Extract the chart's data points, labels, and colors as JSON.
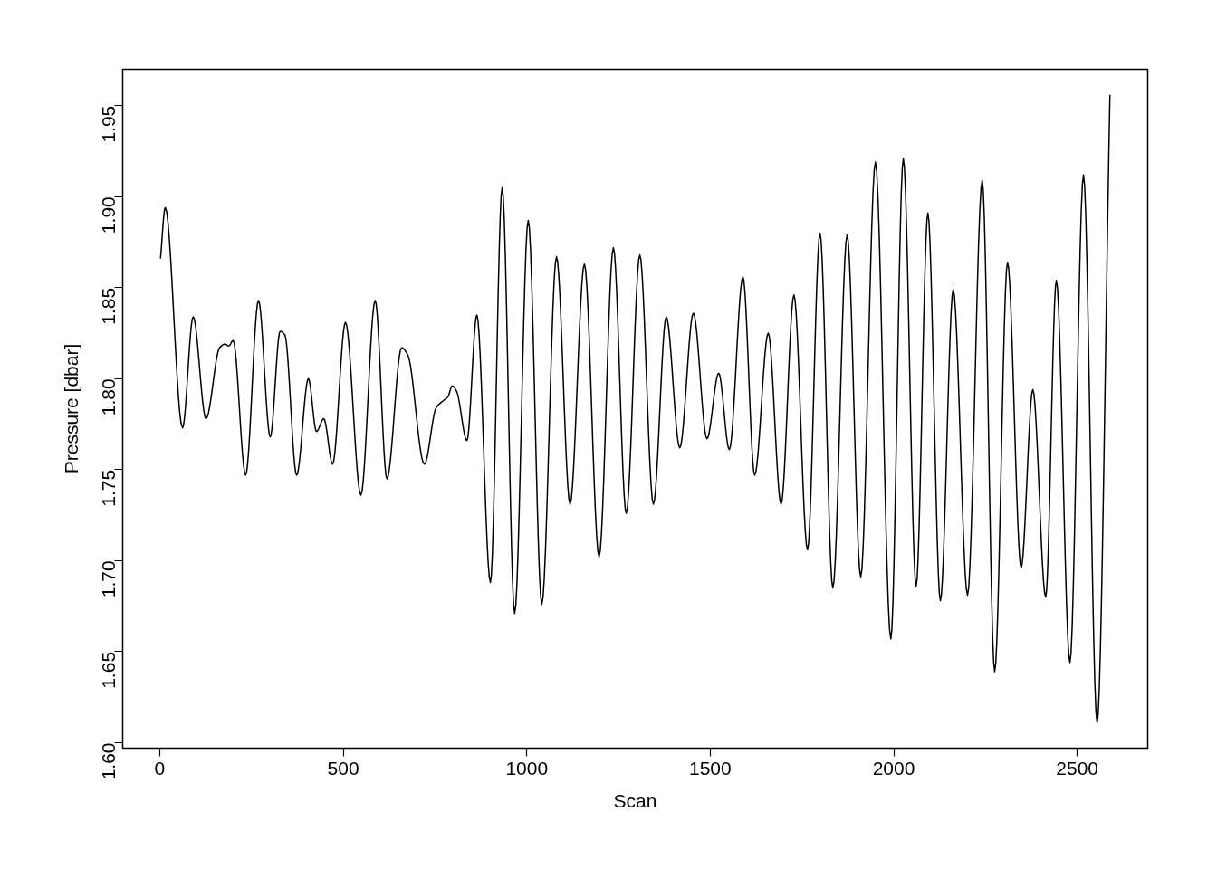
{
  "chart_data": {
    "type": "line",
    "xlabel": "Scan",
    "ylabel": "Pressure [dbar]",
    "x": [
      2,
      15,
      62,
      91,
      126,
      163,
      178,
      188,
      200,
      234,
      269,
      301,
      328,
      341,
      373,
      405,
      427,
      447,
      471,
      506,
      548,
      587,
      619,
      659,
      676,
      721,
      753,
      773,
      785,
      797,
      809,
      837,
      864,
      901,
      933,
      967,
      1004,
      1041,
      1081,
      1118,
      1157,
      1197,
      1236,
      1271,
      1308,
      1345,
      1380,
      1417,
      1454,
      1491,
      1523,
      1552,
      1589,
      1621,
      1658,
      1693,
      1728,
      1765,
      1799,
      1834,
      1873,
      1910,
      1950,
      1992,
      2026,
      2061,
      2093,
      2127,
      2162,
      2201,
      2241,
      2275,
      2310,
      2347,
      2379,
      2414,
      2443,
      2480,
      2517,
      2554,
      2589
    ],
    "series": [
      {
        "color": "#000000",
        "values": [
          1.866,
          1.894,
          1.773,
          1.834,
          1.778,
          1.817,
          1.819,
          1.818,
          1.821,
          1.747,
          1.843,
          1.768,
          1.826,
          1.824,
          1.747,
          1.8,
          1.771,
          1.778,
          1.753,
          1.831,
          1.736,
          1.843,
          1.745,
          1.817,
          1.813,
          1.753,
          1.784,
          1.788,
          1.79,
          1.796,
          1.793,
          1.766,
          1.835,
          1.688,
          1.905,
          1.671,
          1.887,
          1.676,
          1.867,
          1.731,
          1.863,
          1.702,
          1.872,
          1.726,
          1.868,
          1.731,
          1.834,
          1.762,
          1.836,
          1.767,
          1.803,
          1.761,
          1.856,
          1.747,
          1.825,
          1.731,
          1.846,
          1.706,
          1.88,
          1.685,
          1.879,
          1.691,
          1.919,
          1.657,
          1.921,
          1.686,
          1.891,
          1.678,
          1.849,
          1.681,
          1.909,
          1.639,
          1.864,
          1.696,
          1.794,
          1.68,
          1.854,
          1.644,
          1.912,
          1.611,
          1.956
        ]
      }
    ],
    "xlim": [
      -101,
      2692
    ],
    "ylim": [
      1.597,
      1.97
    ],
    "xticks": [
      0,
      500,
      1000,
      1500,
      2000,
      2500
    ],
    "yticks": [
      {
        "value": 1.6,
        "label": "1.60"
      },
      {
        "value": 1.65,
        "label": "1.65"
      },
      {
        "value": 1.7,
        "label": "1.70"
      },
      {
        "value": 1.75,
        "label": "1.75"
      },
      {
        "value": 1.8,
        "label": "1.80"
      },
      {
        "value": 1.85,
        "label": "1.85"
      },
      {
        "value": 1.9,
        "label": "1.90"
      },
      {
        "value": 1.95,
        "label": "1.95"
      }
    ],
    "grid": false,
    "line_style": "solid",
    "marker": "none"
  }
}
